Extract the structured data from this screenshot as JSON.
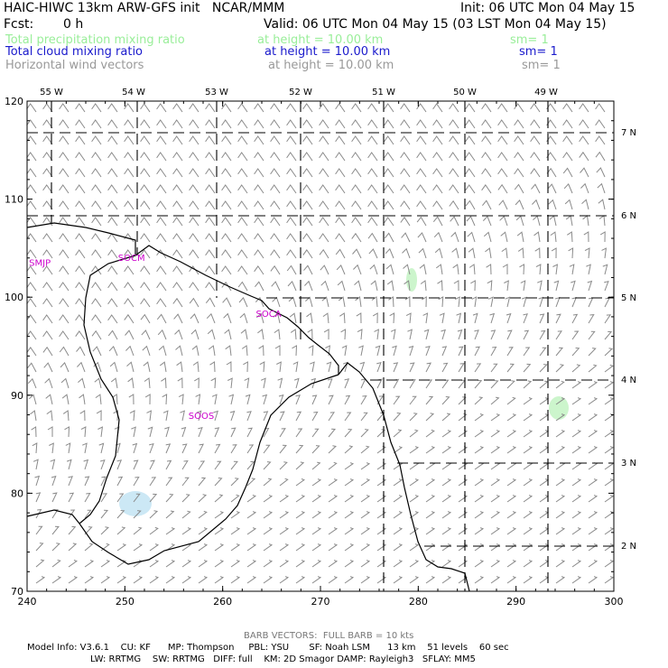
{
  "header": {
    "title": "HAIC-HIWC 13km ARW-GFS init   NCAR/MMM",
    "init": "Init: 06 UTC Mon 04 May 15",
    "fcst_label": "Fcst:",
    "fcst_value": "0 h",
    "valid": "Valid: 06 UTC Mon 04 May 15 (03 LST Mon 04 May 15)"
  },
  "fields": [
    {
      "name": "Total precipitation mixing ratio",
      "height": "at height = 10.00 km",
      "sm": "sm= 1",
      "color": "#99ee99"
    },
    {
      "name": "Total cloud mixing ratio",
      "height": "at height = 10.00 km",
      "sm": "sm= 1",
      "color": "#1a1acc"
    },
    {
      "name": "Horizontal wind vectors",
      "height": "at height = 10.00 km",
      "sm": "sm= 1",
      "color": "#999999"
    }
  ],
  "map": {
    "top_labels": [
      "55 W",
      "54 W",
      "53 W",
      "52 W",
      "51 W",
      "50 W",
      "49 W"
    ],
    "right_labels": [
      "7 N",
      "6 N",
      "5 N",
      "4 N",
      "3 N",
      "2 N"
    ],
    "x_ticks": [
      "240",
      "250",
      "260",
      "270",
      "280",
      "290",
      "300"
    ],
    "y_ticks": [
      "70",
      "80",
      "90",
      "100",
      "110",
      "120"
    ],
    "x_range": [
      240,
      300
    ],
    "y_range": [
      70,
      120
    ],
    "stations": [
      {
        "label": "SMJP",
        "x": 240.2,
        "y": 103.2
      },
      {
        "label": "SOCM",
        "x": 249.3,
        "y": 103.7
      },
      {
        "label": "SOCA",
        "x": 263.4,
        "y": 98.0
      },
      {
        "label": "SOOS",
        "x": 256.5,
        "y": 87.6
      }
    ],
    "station_color": "#cc00cc",
    "precip_color": "#ccf5cc",
    "cloud_color": "#cce8f5"
  },
  "footer": {
    "barb_note": "BARB VECTORS:  FULL BARB = 10 kts",
    "model_line1": "Model Info: V3.6.1    CU: KF      MP: Thompson     PBL: YSU       SF: Noah LSM      13 km    51 levels    60 sec",
    "model_line2": "LW: RRTMG    SW: RRTMG   DIFF: full    KM: 2D Smagor DAMP: Rayleigh3   SFLAY: MM5"
  }
}
